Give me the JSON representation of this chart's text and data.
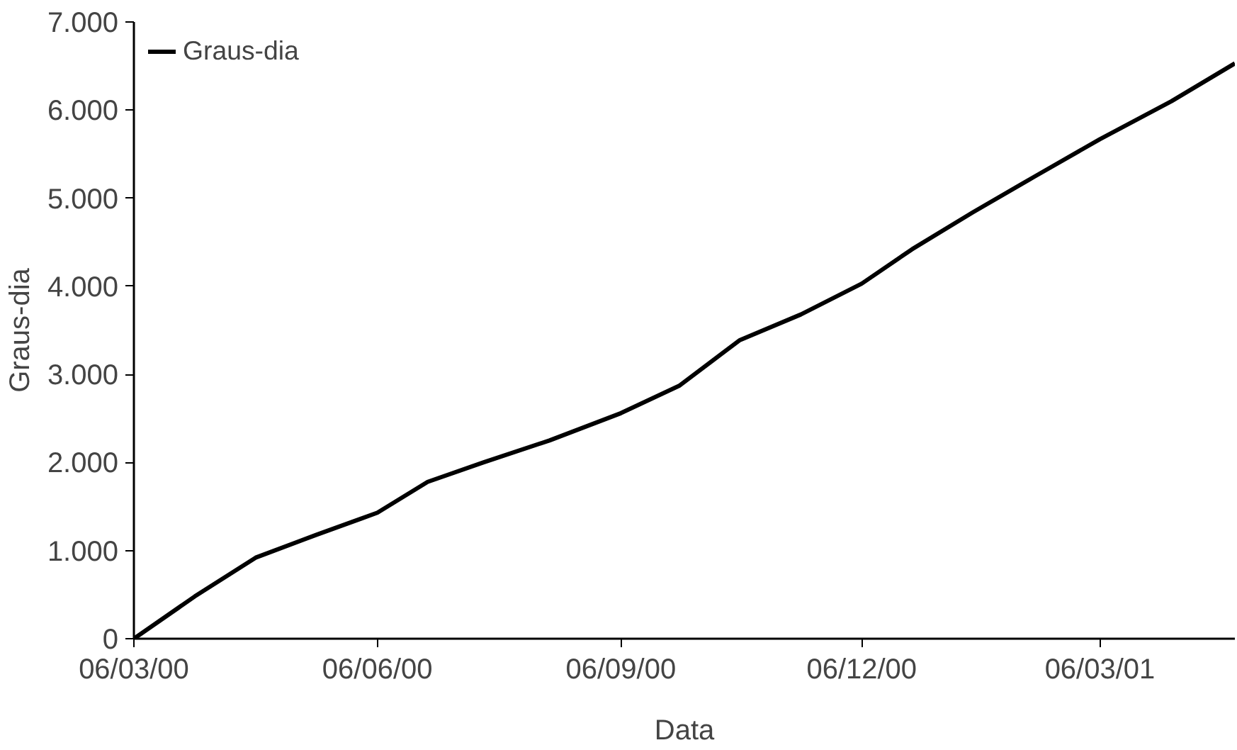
{
  "chart_data": {
    "type": "line",
    "xlabel": "Data",
    "ylabel": "Graus-dia",
    "x": [
      "2000-03-06",
      "2000-03-29",
      "2000-04-21",
      "2000-05-14",
      "2000-06-06",
      "2000-06-25",
      "2000-07-16",
      "2000-08-10",
      "2000-09-06",
      "2000-09-28",
      "2000-10-21",
      "2000-11-13",
      "2000-12-06",
      "2000-12-25",
      "2001-01-17",
      "2001-02-09",
      "2001-03-06",
      "2001-04-02",
      "2001-04-26"
    ],
    "series": [
      {
        "name": "Graus-dia",
        "color": "#000000",
        "values": [
          0,
          480,
          920,
          1180,
          1430,
          1780,
          2000,
          2250,
          2560,
          2870,
          3390,
          3680,
          4030,
          4420,
          4840,
          5240,
          5670,
          6100,
          6530
        ]
      }
    ],
    "xlim": [
      "2000-03-06",
      "2001-04-26"
    ],
    "xticks": [
      {
        "value": "2000-03-06",
        "label": "06/03/00"
      },
      {
        "value": "2000-06-06",
        "label": "06/06/00"
      },
      {
        "value": "2000-09-06",
        "label": "06/09/00"
      },
      {
        "value": "2000-12-06",
        "label": "06/12/00"
      },
      {
        "value": "2001-03-06",
        "label": "06/03/01"
      }
    ],
    "ylim": [
      0,
      7000
    ],
    "yticks": [
      0,
      {
        "value": 1000,
        "label": "1.000"
      },
      {
        "value": 2000,
        "label": "2.000"
      },
      {
        "value": 3000,
        "label": "3.000"
      },
      {
        "value": 4000,
        "label": "4.000"
      },
      {
        "value": 5000,
        "label": "5.000"
      },
      {
        "value": 6000,
        "label": "6.000"
      },
      {
        "value": 7000,
        "label": "7.000"
      }
    ],
    "grid": false,
    "legend": "top left",
    "marker": "none",
    "line_style": "solid"
  }
}
